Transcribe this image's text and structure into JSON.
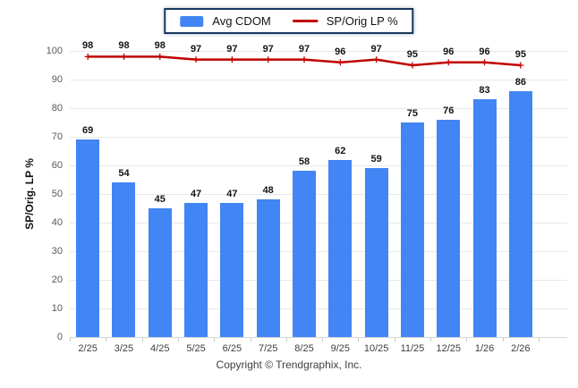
{
  "chart_data": {
    "type": "bar",
    "subtype": "bar-with-line-overlay",
    "categories": [
      "2/25",
      "3/25",
      "4/25",
      "5/25",
      "6/25",
      "7/25",
      "8/25",
      "9/25",
      "10/25",
      "11/25",
      "12/25",
      "1/26",
      "2/26"
    ],
    "series": [
      {
        "name": "Avg CDOM",
        "type": "bar",
        "color": "#4285F4",
        "values": [
          69,
          54,
          45,
          47,
          47,
          48,
          58,
          62,
          59,
          75,
          76,
          83,
          86
        ]
      },
      {
        "name": "SP/Orig LP %",
        "type": "line",
        "color": "#C00000",
        "values": [
          98,
          98,
          98,
          97,
          97,
          97,
          97,
          96,
          97,
          95,
          96,
          96,
          95
        ]
      }
    ],
    "title": "",
    "xlabel": "",
    "ylabel": "SP/Orig. LP %",
    "ylim": [
      0,
      100
    ],
    "yticks": [
      0,
      10,
      20,
      30,
      40,
      50,
      60,
      70,
      80,
      90,
      100
    ],
    "grid": true,
    "legend_position": "top",
    "data_labels": true
  },
  "footer": {
    "copyright": "Copyright © Trendgraphix, Inc."
  }
}
